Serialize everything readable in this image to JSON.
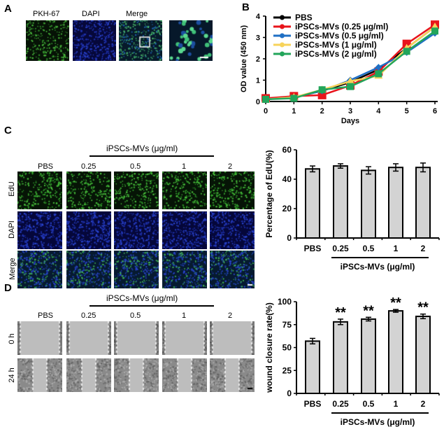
{
  "panels": {
    "a": "A",
    "b": "B",
    "c": "C",
    "d": "D"
  },
  "panel_a": {
    "labels": [
      "PKH-67",
      "DAPI",
      "Merge"
    ]
  },
  "panel_c": {
    "group_label": "iPSCs-MVs (μg/ml)",
    "columns": [
      "PBS",
      "0.25",
      "0.5",
      "1",
      "2"
    ],
    "rows": [
      "EdU",
      "DAPI",
      "Merge"
    ]
  },
  "panel_d": {
    "group_label": "iPSCs-MVs (μg/ml)",
    "columns": [
      "PBS",
      "0.25",
      "0.5",
      "1",
      "2"
    ],
    "rows": [
      "0 h",
      "24 h"
    ]
  },
  "chart_data": [
    {
      "type": "line",
      "title": "",
      "xlabel": "Days",
      "ylabel": "OD value (450 nm)",
      "x": [
        0,
        1,
        2,
        3,
        4,
        5,
        6
      ],
      "xlim": [
        0,
        6
      ],
      "ylim": [
        0,
        4
      ],
      "yticks": [
        "0",
        "1",
        "2",
        "3",
        "4"
      ],
      "xticks": [
        "0",
        "1",
        "2",
        "3",
        "4",
        "5",
        "6"
      ],
      "legend": "top-left",
      "series": [
        {
          "name": "PBS",
          "color": "#000000",
          "values": [
            0.1,
            0.2,
            0.5,
            0.9,
            1.5,
            2.5,
            3.5
          ]
        },
        {
          "name": "iPSCs-MVs (0.25 μg/ml)",
          "color": "#e8141b",
          "values": [
            0.15,
            0.25,
            0.3,
            0.75,
            1.4,
            2.7,
            3.6
          ]
        },
        {
          "name": "iPSCs-MVs (0.5 μg/ml)",
          "color": "#1f6fc4",
          "values": [
            0.1,
            0.2,
            0.5,
            1.0,
            1.6,
            2.3,
            3.2
          ]
        },
        {
          "name": "iPSCs-MVs (1 μg/ml)",
          "color": "#f7d35a",
          "values": [
            0.1,
            0.2,
            0.55,
            0.95,
            1.2,
            2.5,
            3.5
          ]
        },
        {
          "name": "iPSCs-MVs (2 μg/ml)",
          "color": "#22a55a",
          "values": [
            0.1,
            0.15,
            0.55,
            0.7,
            1.3,
            2.35,
            3.3
          ]
        }
      ]
    },
    {
      "type": "bar",
      "ylabel": "Percentage of EdU(%)",
      "xlabel": "iPSCs-MVs (μg/ml)",
      "categories": [
        "PBS",
        "0.25",
        "0.5",
        "1",
        "2"
      ],
      "values": [
        47,
        49,
        46,
        48,
        48
      ],
      "errors": [
        2,
        1.5,
        2.5,
        2.5,
        3
      ],
      "ylim": [
        0,
        60
      ],
      "yticks": [
        "0",
        "20",
        "40",
        "60"
      ],
      "annotations": [
        "",
        "",
        "",
        "",
        ""
      ],
      "bar_color": "#d3d3d3"
    },
    {
      "type": "bar",
      "ylabel": "wound closure rate(%)",
      "xlabel": "iPSCs-MVs (μg/ml)",
      "categories": [
        "PBS",
        "0.25",
        "0.5",
        "1",
        "2"
      ],
      "values": [
        57,
        78,
        81,
        90,
        84
      ],
      "errors": [
        3,
        3,
        2,
        1.5,
        2.5
      ],
      "ylim": [
        0,
        100
      ],
      "yticks": [
        "0",
        "25",
        "50",
        "75",
        "100"
      ],
      "annotations": [
        "",
        "**",
        "**",
        "**",
        "**"
      ],
      "bar_color": "#d3d3d3"
    }
  ]
}
